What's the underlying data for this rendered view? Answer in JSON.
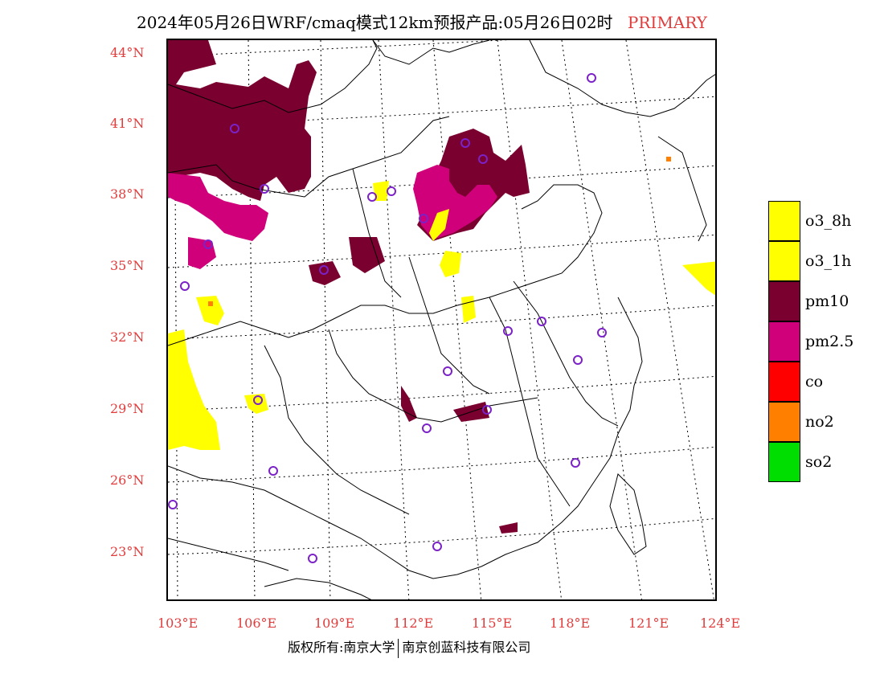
{
  "title": {
    "text": "2024年05月26日WRF/cmaq模式12km预报产品:05月26日02时",
    "tag": "PRIMARY",
    "tag_color": "#e03c3c"
  },
  "axes": {
    "lat_labels": [
      "44°N",
      "41°N",
      "38°N",
      "35°N",
      "32°N",
      "29°N",
      "26°N",
      "23°N"
    ],
    "lon_labels": [
      "103°E",
      "106°E",
      "109°E",
      "112°E",
      "115°E",
      "118°E",
      "121°E",
      "124°E"
    ],
    "label_color": "#e03c3c"
  },
  "legend": [
    {
      "label": "o3_8h",
      "color": "#ffff00"
    },
    {
      "label": "o3_1h",
      "color": "#ffff00"
    },
    {
      "label": "pm10",
      "color": "#7a0030"
    },
    {
      "label": "pm2.5",
      "color": "#d0007a"
    },
    {
      "label": "co",
      "color": "#ff0000"
    },
    {
      "label": "no2",
      "color": "#ff8000"
    },
    {
      "label": "so2",
      "color": "#00dd00"
    }
  ],
  "footer": {
    "left": "版权所有:南京大学",
    "right": "南京创蓝科技有限公司"
  },
  "map": {
    "extent": {
      "lon_min": 102.7,
      "lon_max": 124.0,
      "lat_min": 21.0,
      "lat_max": 44.5
    },
    "station_marker_color": "#7b22c8",
    "pollutant_zones": [
      {
        "pollutant": "pm10",
        "region": "Inner Mongolia / Gansu west"
      },
      {
        "pollutant": "pm10",
        "region": "Beijing-Tianjin-Hebei"
      },
      {
        "pollutant": "pm2.5",
        "region": "Hebei / Shandong north"
      },
      {
        "pollutant": "pm2.5",
        "region": "Ningxia / Gansu"
      },
      {
        "pollutant": "o3_1h",
        "region": "Sichuan basin west"
      },
      {
        "pollutant": "o3_1h",
        "region": "Henan / Shandong"
      },
      {
        "pollutant": "o3_1h",
        "region": "Korea east"
      },
      {
        "pollutant": "pm10",
        "region": "Hunan / Jiangxi"
      }
    ]
  }
}
